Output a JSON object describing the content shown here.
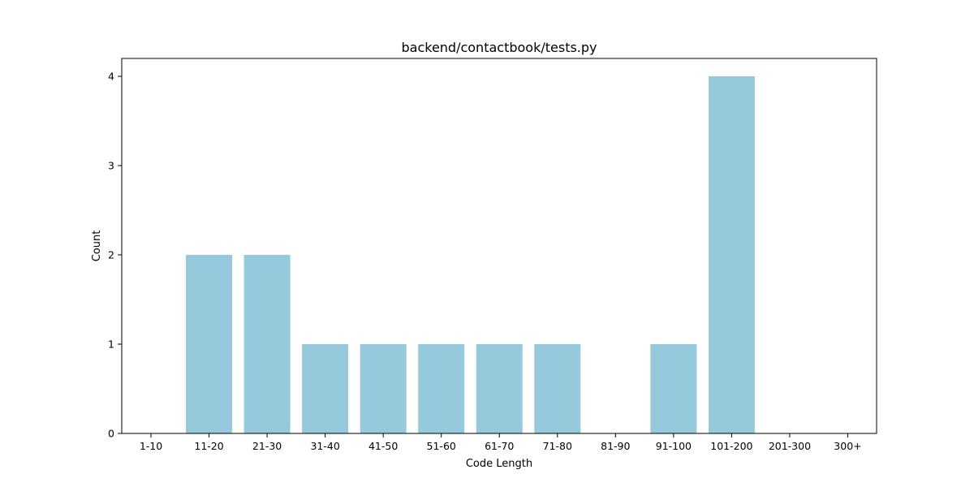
{
  "chart_data": {
    "type": "bar",
    "title": "backend/contactbook/tests.py",
    "xlabel": "Code Length",
    "ylabel": "Count",
    "categories": [
      "1-10",
      "11-20",
      "21-30",
      "31-40",
      "41-50",
      "51-60",
      "61-70",
      "71-80",
      "81-90",
      "91-100",
      "101-200",
      "201-300",
      "300+"
    ],
    "values": [
      0,
      2,
      2,
      1,
      1,
      1,
      1,
      1,
      0,
      1,
      4,
      0,
      0
    ],
    "ylim": [
      0,
      4.2
    ],
    "yticks": [
      "0",
      "1",
      "2",
      "3",
      "4"
    ],
    "grid": false,
    "bar_color": "#96c9dc"
  }
}
